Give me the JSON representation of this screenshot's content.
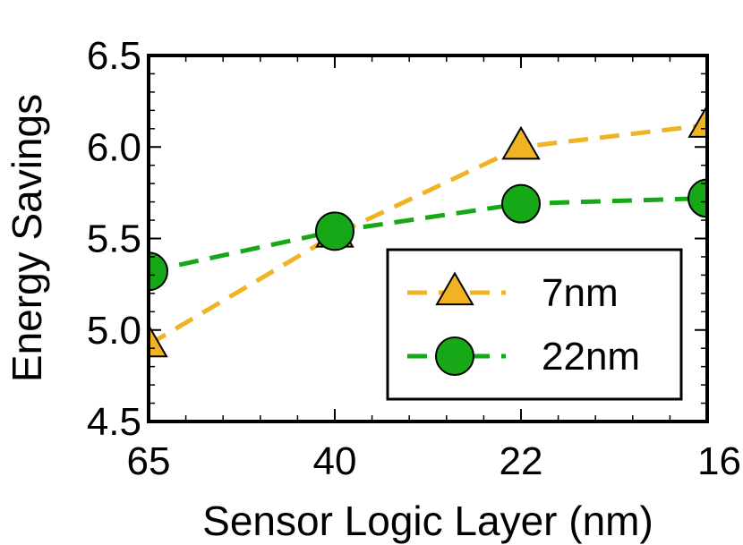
{
  "chart_data": {
    "type": "line",
    "title": "",
    "xlabel": "Sensor Logic Layer (nm)",
    "ylabel": "Energy Savings",
    "categories": [
      "65",
      "40",
      "22",
      "16"
    ],
    "ylim": [
      4.5,
      6.5
    ],
    "yticks": [
      "4.5",
      "5.0",
      "5.5",
      "6.0",
      "6.5"
    ],
    "grid": false,
    "legend_position": "lower-right",
    "series": [
      {
        "name": "7nm",
        "values": [
          4.92,
          5.52,
          6.0,
          6.12
        ],
        "color": "#f0b323",
        "marker": "triangle"
      },
      {
        "name": "22nm",
        "values": [
          5.32,
          5.54,
          5.69,
          5.72
        ],
        "color": "#17a817",
        "marker": "circle"
      }
    ]
  }
}
